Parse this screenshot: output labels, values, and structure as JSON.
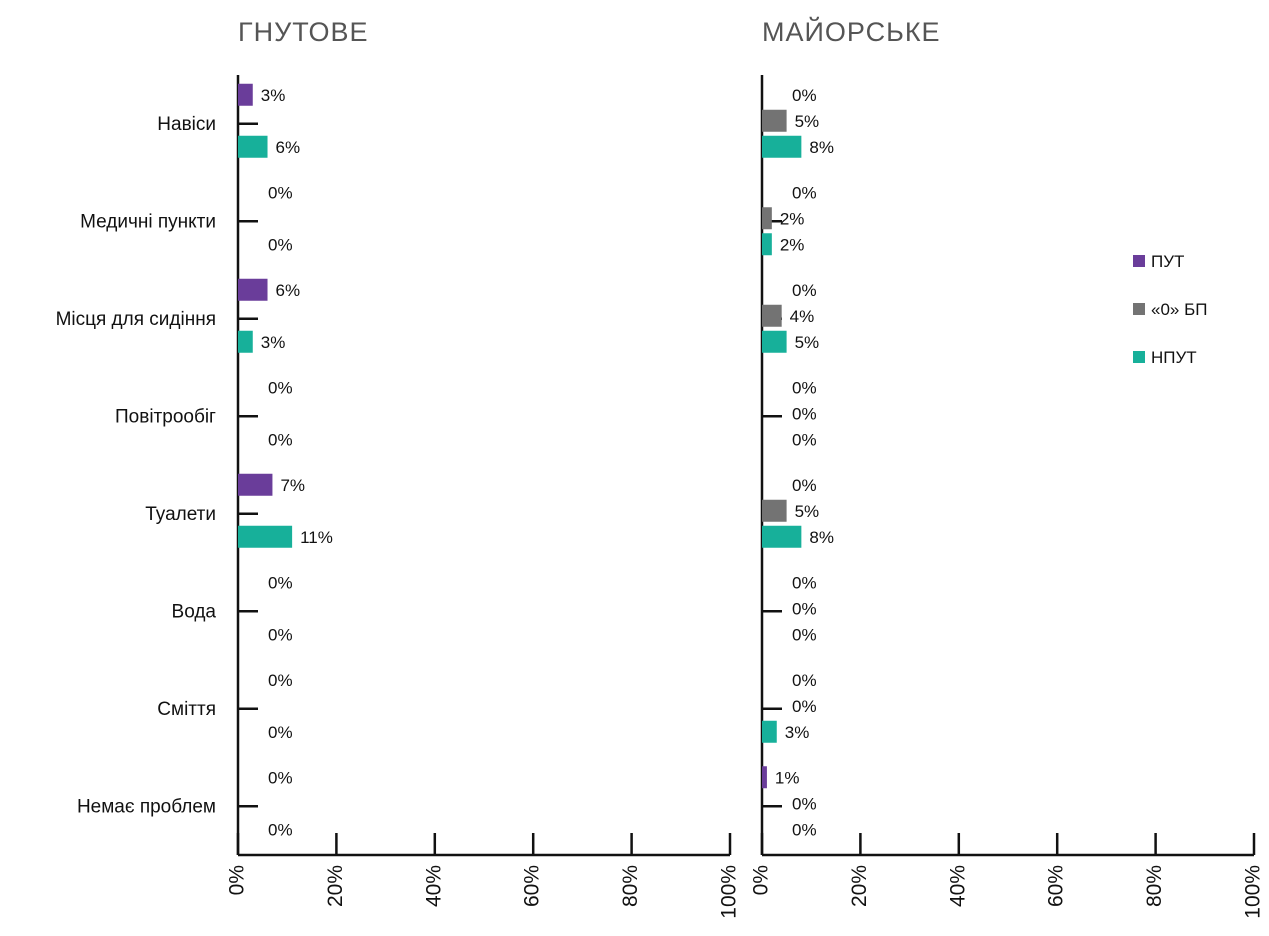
{
  "chart_data": [
    {
      "type": "bar",
      "orientation": "horizontal",
      "title": "ГНУТОВЕ",
      "categories": [
        "Навіси",
        "Медичні пункти",
        "Місця для сидіння",
        "Повітрообіг",
        "Туалети",
        "Вода",
        "Сміття",
        "Немає проблем"
      ],
      "series": [
        {
          "name": "ПУТ",
          "values": [
            3,
            0,
            6,
            0,
            7,
            0,
            0,
            0
          ],
          "labels": [
            "3%",
            "0%",
            "6%",
            "0%",
            "7%",
            "0%",
            "0%",
            "0%"
          ]
        },
        {
          "name": "НПУТ",
          "values": [
            6,
            0,
            3,
            0,
            11,
            0,
            0,
            0
          ],
          "labels": [
            "6%",
            "0%",
            "3%",
            "0%",
            "11%",
            "0%",
            "0%",
            "0%"
          ]
        }
      ],
      "xlim": [
        0,
        100
      ],
      "xticks": [
        "0%",
        "20%",
        "40%",
        "60%",
        "80%",
        "100%"
      ],
      "grid": false
    },
    {
      "type": "bar",
      "orientation": "horizontal",
      "title": "МАЙОРСЬКЕ",
      "categories": [
        "Навіси",
        "Медичні пункти",
        "Місця для сидіння",
        "Повітрообіг",
        "Туалети",
        "Вода",
        "Сміття",
        "Немає проблем"
      ],
      "series": [
        {
          "name": "ПУТ",
          "values": [
            0,
            0,
            0,
            0,
            0,
            0,
            0,
            1
          ],
          "labels": [
            "0%",
            "0%",
            "0%",
            "0%",
            "0%",
            "0%",
            "0%",
            "1%"
          ]
        },
        {
          "name": "«0» БП",
          "values": [
            5,
            2,
            4,
            0,
            5,
            0,
            0,
            0
          ],
          "labels": [
            "5%",
            "2%",
            "4%",
            "0%",
            "5%",
            "0%",
            "0%",
            "0%"
          ]
        },
        {
          "name": "НПУТ",
          "values": [
            8,
            2,
            5,
            0,
            8,
            0,
            3,
            0
          ],
          "labels": [
            "8%",
            "2%",
            "5%",
            "0%",
            "8%",
            "0%",
            "3%",
            "0%"
          ]
        }
      ],
      "xlim": [
        0,
        100
      ],
      "xticks": [
        "0%",
        "20%",
        "40%",
        "60%",
        "80%",
        "100%"
      ],
      "grid": false
    }
  ],
  "legend": {
    "placement": "right",
    "items": [
      {
        "name": "ПУТ",
        "color": "#6a3d9a"
      },
      {
        "name": "«0» БП",
        "color": "#737373"
      },
      {
        "name": "НПУТ",
        "color": "#17b09a"
      }
    ]
  },
  "colors": {
    "ПУТ": "#6a3d9a",
    "«0» БП": "#737373",
    "НПУТ": "#17b09a"
  }
}
